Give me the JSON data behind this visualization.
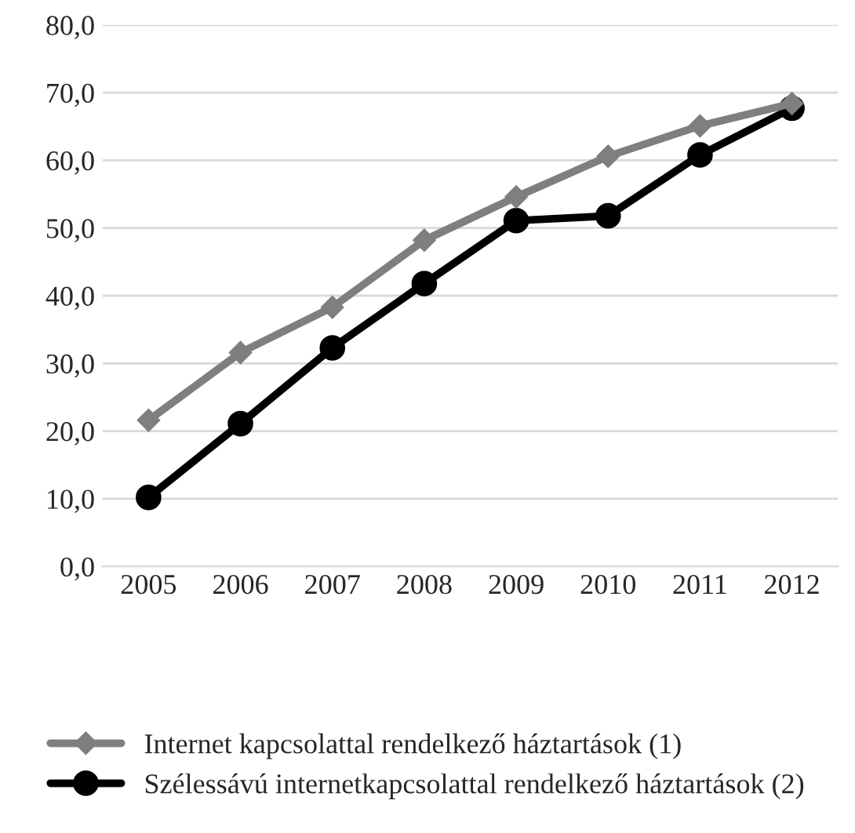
{
  "chart_data": {
    "type": "line",
    "categories": [
      "2005",
      "2006",
      "2007",
      "2008",
      "2009",
      "2010",
      "2011",
      "2012"
    ],
    "series": [
      {
        "name": "Internet kapcsolattal rendelkező háztartások (1)",
        "color": "#7f7f7f",
        "marker": "diamond",
        "values": [
          21.6,
          31.6,
          38.3,
          48.2,
          54.6,
          60.6,
          65.1,
          68.4
        ]
      },
      {
        "name": "Szélessávú internetkapcsolattal rendelkező háztartások (2)",
        "color": "#000000",
        "marker": "circle",
        "values": [
          10.2,
          21.1,
          32.3,
          41.8,
          51.1,
          51.8,
          60.8,
          67.7
        ]
      }
    ],
    "ylim": [
      0,
      80
    ],
    "yticks": [
      {
        "value": 0,
        "label": "0,0"
      },
      {
        "value": 10,
        "label": "10,0"
      },
      {
        "value": 20,
        "label": "20,0"
      },
      {
        "value": 30,
        "label": "30,0"
      },
      {
        "value": 40,
        "label": "40,0"
      },
      {
        "value": 50,
        "label": "50,0"
      },
      {
        "value": 60,
        "label": "60,0"
      },
      {
        "value": 70,
        "label": "70,0"
      },
      {
        "value": 80,
        "label": "80,0"
      }
    ],
    "grid": "y",
    "legend": "bottom"
  }
}
